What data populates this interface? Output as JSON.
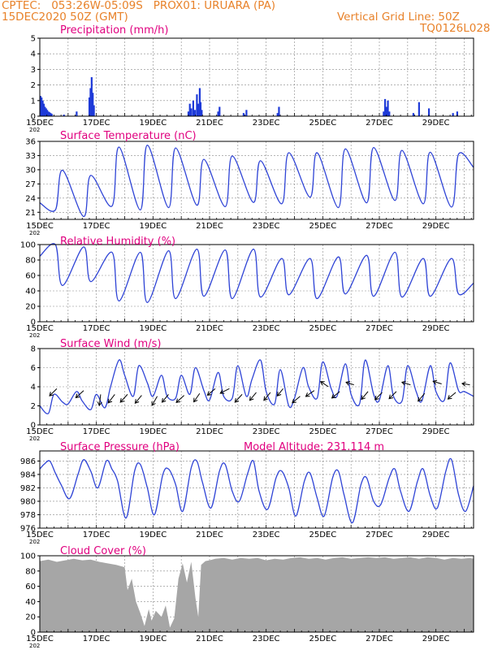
{
  "header": {
    "line1": "CPTEC:   053:26W-05:09S   PROX01: URUARA (PA)",
    "line2": "15DEC2020 50Z (GMT)",
    "grid_note": "Vertical Grid Line: 50Z",
    "code": "TQ0126L028"
  },
  "x_ticks": [
    "15DEC",
    "17DEC",
    "19DEC",
    "21DEC",
    "23DEC",
    "25DEC",
    "27DEC",
    "29DEC"
  ],
  "year_stub": "202",
  "colors": {
    "header": "#e8822a",
    "title": "#e0007f",
    "line": "#2f44d6",
    "bar": "#1e3ad8",
    "cloud": "#a6a6a6",
    "arrow": "#000000"
  },
  "chart_data": [
    {
      "id": "precip",
      "type": "bar",
      "title": "Precipitation (mm/h)",
      "ylim": [
        0,
        5
      ],
      "yticks": [
        0,
        1,
        2,
        3,
        4,
        5
      ],
      "xlim": [
        0,
        15.33
      ],
      "x": [
        0.02,
        0.06,
        0.1,
        0.14,
        0.18,
        0.22,
        0.26,
        0.3,
        0.34,
        0.38,
        0.42,
        0.85,
        1.3,
        1.75,
        1.79,
        1.83,
        1.87,
        1.91,
        5.25,
        5.3,
        5.35,
        5.42,
        5.48,
        5.55,
        5.6,
        5.65,
        5.68,
        5.72,
        6.3,
        6.35,
        7.2,
        7.3,
        8.4,
        8.45,
        12.15,
        12.2,
        12.25,
        12.3,
        12.35,
        13.2,
        13.4,
        13.75,
        14.6,
        14.75
      ],
      "values": [
        1.3,
        1.2,
        1.0,
        0.8,
        0.6,
        0.5,
        0.4,
        0.3,
        0.25,
        0.2,
        0.15,
        0.1,
        0.3,
        1.2,
        1.8,
        2.5,
        1.5,
        0.7,
        0.3,
        0.8,
        0.5,
        1.0,
        0.4,
        1.4,
        0.8,
        1.8,
        0.9,
        0.4,
        0.3,
        0.6,
        0.2,
        0.4,
        0.2,
        0.6,
        0.3,
        1.1,
        0.6,
        1.0,
        0.3,
        0.2,
        0.9,
        0.5,
        0.2,
        0.3
      ]
    },
    {
      "id": "temp",
      "type": "line",
      "title": "Surface Temperature (nC)",
      "ylim": [
        19.5,
        36
      ],
      "yticks": [
        21,
        24,
        27,
        30,
        33,
        36
      ],
      "xlim": [
        0,
        15.33
      ],
      "min_hour": 0.55,
      "max_hour": 0.8,
      "mins": [
        21.5,
        20.1,
        22.3,
        21.5,
        22.0,
        22.5,
        22.2,
        23.1,
        22.8,
        24.2,
        22.0,
        23.0,
        23.5,
        22.8,
        22.1
      ],
      "maxs": [
        29.9,
        28.8,
        34.8,
        35.2,
        34.6,
        32.2,
        32.9,
        31.9,
        33.6,
        33.6,
        34.4,
        34.7,
        34.1,
        33.7,
        33.3
      ],
      "start": 23.0,
      "end": 30.5
    },
    {
      "id": "rh",
      "type": "line",
      "title": "Relative Humidity (%)",
      "ylim": [
        0,
        100
      ],
      "yticks": [
        0,
        20,
        40,
        60,
        80,
        100
      ],
      "xlim": [
        0,
        15.33
      ],
      "min_hour": 0.8,
      "max_hour": 0.55,
      "mins": [
        47,
        52,
        27,
        25,
        30,
        33,
        30,
        32,
        35,
        30,
        36,
        33,
        32,
        33,
        36
      ],
      "maxs": [
        100,
        97,
        90,
        90,
        92,
        94,
        93,
        94,
        82,
        82,
        84,
        86,
        90,
        82,
        82
      ],
      "start": 85,
      "end": 50
    },
    {
      "id": "wind",
      "type": "line",
      "title": "Surface Wind (m/s)",
      "ylim": [
        0,
        8
      ],
      "yticks": [
        0,
        2,
        4,
        6,
        8
      ],
      "xlim": [
        0,
        15.33
      ],
      "x": [
        0,
        0.3,
        0.5,
        0.8,
        1.0,
        1.3,
        1.5,
        1.8,
        2.0,
        2.3,
        2.5,
        2.8,
        3.0,
        3.3,
        3.5,
        3.8,
        4.0,
        4.3,
        4.5,
        4.8,
        5.0,
        5.3,
        5.5,
        5.8,
        6.0,
        6.3,
        6.5,
        6.8,
        7.0,
        7.3,
        7.5,
        7.8,
        8.0,
        8.3,
        8.5,
        8.8,
        9.0,
        9.3,
        9.5,
        9.8,
        10.0,
        10.3,
        10.5,
        10.8,
        11.0,
        11.3,
        11.5,
        11.8,
        12.0,
        12.3,
        12.5,
        12.8,
        13.0,
        13.3,
        13.5,
        13.8,
        14.0,
        14.3,
        14.5,
        14.8,
        15.0,
        15.33
      ],
      "values": [
        2.0,
        1.2,
        3.2,
        2.4,
        2.2,
        3.5,
        2.5,
        1.6,
        3.2,
        1.8,
        4.0,
        6.8,
        5.2,
        3.0,
        6.2,
        4.4,
        3.0,
        5.2,
        3.0,
        2.8,
        5.2,
        3.2,
        6.0,
        3.6,
        2.6,
        5.5,
        3.0,
        2.8,
        6.2,
        3.0,
        4.8,
        6.8,
        3.5,
        2.2,
        5.8,
        2.0,
        2.8,
        6.0,
        4.0,
        2.8,
        6.6,
        3.8,
        3.0,
        6.4,
        3.2,
        2.2,
        6.8,
        3.2,
        2.6,
        6.2,
        3.0,
        2.5,
        6.2,
        3.5,
        2.5,
        6.2,
        3.5,
        2.6,
        6.5,
        3.6,
        3.5,
        3.0
      ],
      "arrows": [
        {
          "x": 0.6,
          "y": 3.8,
          "dx": -0.55,
          "dy": -0.55
        },
        {
          "x": 1.55,
          "y": 3.6,
          "dx": -0.6,
          "dy": -0.55
        },
        {
          "x": 2.15,
          "y": 3.2,
          "dx": -0.1,
          "dy": -0.85
        },
        {
          "x": 2.65,
          "y": 3.2,
          "dx": -0.5,
          "dy": -0.65
        },
        {
          "x": 3.1,
          "y": 3.2,
          "dx": -0.55,
          "dy": -0.6
        },
        {
          "x": 3.6,
          "y": 3.1,
          "dx": -0.5,
          "dy": -0.6
        },
        {
          "x": 4.15,
          "y": 3.0,
          "dx": -0.4,
          "dy": -0.7
        },
        {
          "x": 4.55,
          "y": 3.2,
          "dx": -0.5,
          "dy": -0.6
        },
        {
          "x": 5.1,
          "y": 3.1,
          "dx": -0.6,
          "dy": -0.55
        },
        {
          "x": 5.65,
          "y": 3.3,
          "dx": -0.45,
          "dy": -0.65
        },
        {
          "x": 6.2,
          "y": 3.8,
          "dx": -0.6,
          "dy": -0.5
        },
        {
          "x": 6.7,
          "y": 3.8,
          "dx": -0.7,
          "dy": -0.35
        },
        {
          "x": 7.15,
          "y": 3.2,
          "dx": -0.55,
          "dy": -0.6
        },
        {
          "x": 7.65,
          "y": 3.4,
          "dx": -0.5,
          "dy": -0.6
        },
        {
          "x": 8.15,
          "y": 3.4,
          "dx": -0.5,
          "dy": -0.6
        },
        {
          "x": 8.6,
          "y": 3.8,
          "dx": -0.45,
          "dy": -0.55
        },
        {
          "x": 9.2,
          "y": 3.0,
          "dx": -0.6,
          "dy": -0.5
        },
        {
          "x": 9.7,
          "y": 3.6,
          "dx": -0.65,
          "dy": -0.45
        },
        {
          "x": 10.2,
          "y": 4.0,
          "dx": -0.6,
          "dy": 0.4
        },
        {
          "x": 10.6,
          "y": 3.5,
          "dx": -0.6,
          "dy": -0.5
        },
        {
          "x": 11.1,
          "y": 4.2,
          "dx": -0.6,
          "dy": 0.2
        },
        {
          "x": 11.6,
          "y": 3.5,
          "dx": -0.5,
          "dy": -0.6
        },
        {
          "x": 12.1,
          "y": 3.4,
          "dx": -0.55,
          "dy": -0.55
        },
        {
          "x": 12.6,
          "y": 3.5,
          "dx": -0.55,
          "dy": -0.55
        },
        {
          "x": 13.1,
          "y": 4.2,
          "dx": -0.65,
          "dy": 0.2
        },
        {
          "x": 13.6,
          "y": 3.3,
          "dx": -0.5,
          "dy": -0.6
        },
        {
          "x": 14.2,
          "y": 4.3,
          "dx": -0.65,
          "dy": 0.2
        },
        {
          "x": 14.7,
          "y": 3.4,
          "dx": -0.6,
          "dy": -0.5
        },
        {
          "x": 15.2,
          "y": 4.2,
          "dx": -0.6,
          "dy": 0.1
        }
      ]
    },
    {
      "id": "press",
      "type": "line",
      "title": "Surface Pressure (hPa)",
      "annotation": "Model Altitude: 231.114 m",
      "ylim": [
        976,
        987.5
      ],
      "yticks": [
        976,
        978,
        980,
        982,
        984,
        986
      ],
      "xlim": [
        0,
        15.33
      ],
      "x": [
        0,
        0.15,
        0.35,
        0.55,
        0.75,
        1.05,
        1.35,
        1.55,
        1.8,
        2.05,
        2.35,
        2.55,
        2.75,
        3.05,
        3.35,
        3.55,
        3.8,
        4.05,
        4.35,
        4.55,
        4.8,
        5.05,
        5.35,
        5.55,
        5.75,
        6.05,
        6.35,
        6.55,
        6.8,
        7.05,
        7.35,
        7.55,
        7.75,
        8.05,
        8.35,
        8.55,
        8.8,
        9.05,
        9.35,
        9.55,
        9.8,
        10.05,
        10.35,
        10.55,
        10.75,
        11.05,
        11.35,
        11.55,
        11.8,
        12.05,
        12.35,
        12.55,
        12.75,
        13.05,
        13.35,
        13.55,
        13.8,
        14.05,
        14.35,
        14.55,
        14.8,
        15.05,
        15.33
      ],
      "values": [
        984.8,
        985.5,
        986.0,
        984.2,
        982.5,
        980.4,
        984.0,
        986.2,
        984.5,
        982.0,
        986.0,
        984.8,
        983.0,
        977.5,
        984.5,
        985.5,
        982.0,
        978.0,
        984.0,
        984.8,
        982.5,
        978.5,
        985.0,
        986.0,
        982.8,
        979.0,
        984.5,
        985.5,
        981.5,
        980.0,
        984.2,
        986.0,
        981.5,
        978.8,
        983.5,
        984.5,
        982.0,
        977.8,
        983.0,
        984.2,
        980.5,
        977.8,
        983.5,
        984.5,
        981.0,
        976.8,
        982.5,
        983.5,
        980.0,
        979.5,
        983.5,
        984.8,
        981.5,
        978.5,
        983.0,
        984.8,
        980.8,
        979.0,
        984.5,
        986.2,
        981.0,
        978.5,
        982.3
      ]
    },
    {
      "id": "cloud",
      "type": "area",
      "title": "Cloud Cover (%)",
      "ylim": [
        0,
        100
      ],
      "yticks": [
        0,
        20,
        40,
        60,
        80,
        100
      ],
      "xlim": [
        0,
        15.33
      ],
      "x": [
        0,
        0.3,
        0.6,
        0.9,
        1.2,
        1.5,
        1.8,
        2.1,
        2.4,
        2.7,
        3.0,
        3.1,
        3.25,
        3.4,
        3.55,
        3.7,
        3.85,
        3.95,
        4.1,
        4.3,
        4.45,
        4.6,
        4.75,
        4.9,
        5.05,
        5.2,
        5.35,
        5.5,
        5.6,
        5.7,
        5.85,
        6.0,
        6.2,
        6.5,
        6.8,
        7.1,
        7.4,
        7.7,
        8.0,
        8.3,
        8.6,
        8.9,
        9.2,
        9.5,
        9.8,
        10.1,
        10.4,
        10.7,
        11.0,
        11.3,
        11.6,
        11.9,
        12.2,
        12.5,
        12.8,
        13.1,
        13.4,
        13.7,
        14.0,
        14.3,
        14.6,
        14.9,
        15.2,
        15.33
      ],
      "values": [
        93,
        95,
        92,
        94,
        96,
        94,
        95,
        92,
        90,
        88,
        85,
        55,
        70,
        40,
        25,
        8,
        30,
        15,
        28,
        20,
        35,
        6,
        18,
        70,
        90,
        65,
        92,
        45,
        20,
        88,
        93,
        94,
        96,
        97,
        95,
        97,
        96,
        97,
        94,
        96,
        95,
        97,
        98,
        96,
        97,
        95,
        97,
        98,
        96,
        97,
        98,
        97,
        98,
        96,
        97,
        98,
        96,
        98,
        97,
        95,
        97,
        96,
        97,
        96
      ]
    }
  ]
}
